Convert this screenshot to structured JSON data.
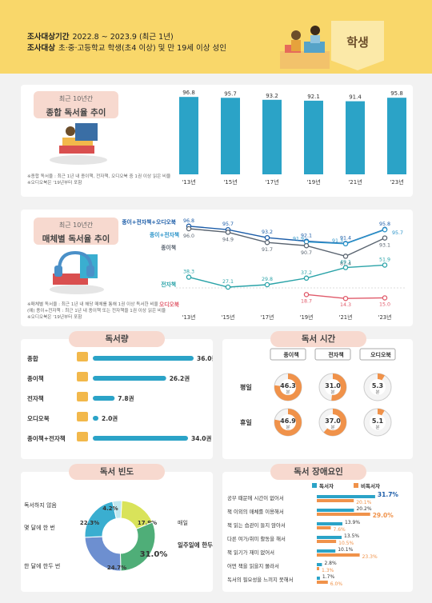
{
  "header": {
    "period_label": "조사대상기간",
    "period_value": "2022.8 ~ 2023.9 (최근 1년)",
    "target_label": "조사대상",
    "target_value": "초·중·고등학교 학생(초4 이상) 및 만 19세 이상 성인",
    "tag": "학생",
    "accent_color": "#f9d76a"
  },
  "overall": {
    "pill_small": "최근 10년간",
    "pill_title": "종합 독서율 추이",
    "notes": [
      "※종합 독서율 : 최근 1년 내 종이책, 전자책, 오디오북 중 1권 이상 읽은 비율",
      "※오디오북은 '19년부터 포함"
    ],
    "bar_color": "#2ba3c7"
  },
  "media": {
    "pill_small": "최근 10년간",
    "pill_title": "매체별 독서율 추이",
    "notes": [
      "※매체별 독서율 : 최근 1년 내 해당 매체를 통해 1권 이상 독서한 비율",
      "(예) 종이+전자책 : 최근 1년 내 종이책 또는 전자책을 1권 이상 읽은 비율",
      "※오디오북은 '19년부터 포함"
    ]
  },
  "reading_amount": {
    "title": "독서량",
    "unit": "권"
  },
  "reading_time": {
    "title": "독서 시간",
    "columns": [
      "종이책",
      "전자책",
      "오디오북"
    ],
    "rows": [
      {
        "label": "평일",
        "values": [
          "46.3",
          "31.0",
          "5.3"
        ]
      },
      {
        "label": "휴일",
        "values": [
          "46.9",
          "37.0",
          "5.1"
        ]
      }
    ],
    "unit": "분"
  },
  "frequency": {
    "title": "독서 빈도"
  },
  "obstacles": {
    "title": "독서 장애요인",
    "legend": [
      "독서자",
      "비독서자"
    ]
  },
  "chart_data": [
    {
      "type": "bar",
      "title": "종합 독서율 추이",
      "categories": [
        "'13년",
        "'15년",
        "'17년",
        "'19년",
        "'21년",
        "'23년"
      ],
      "values": [
        96.8,
        95.7,
        93.2,
        92.1,
        91.4,
        95.8
      ],
      "labels": [
        "96.8",
        "95.7",
        "93.2",
        "92.1",
        "91.4",
        "95.8"
      ],
      "ylim": [
        0,
        100
      ]
    },
    {
      "type": "line",
      "title": "매체별 독서율 추이",
      "categories": [
        "'13년",
        "'15년",
        "'17년",
        "'19년",
        "'21년",
        "'23년"
      ],
      "series": [
        {
          "name": "종이+전자책+오디오북",
          "color": "#1b5ca8",
          "values": [
            96.8,
            95.7,
            93.2,
            92.1,
            91.4,
            95.8
          ],
          "labels": [
            "96.8",
            "95.7",
            "93.2",
            "92.1",
            "91.4",
            "95.8"
          ]
        },
        {
          "name": "종이+전자책",
          "color": "#2a93c9",
          "values": [
            null,
            null,
            null,
            91.9,
            91.3,
            95.7
          ],
          "labels": [
            null,
            null,
            null,
            "91.9",
            "91.3",
            "95.7"
          ]
        },
        {
          "name": "종이책",
          "color": "#5a6470",
          "values": [
            96.0,
            94.9,
            91.7,
            90.7,
            87.4,
            93.1
          ],
          "labels": [
            "96.0",
            "94.9",
            "91.7",
            "90.7",
            "87.4",
            "93.1"
          ]
        },
        {
          "name": "전자책",
          "color": "#2aa3a8",
          "values": [
            38.3,
            27.1,
            29.8,
            37.2,
            49.1,
            51.9
          ],
          "labels": [
            "38.3",
            "27.1",
            "29.8",
            "37.2",
            "49.1",
            "51.9"
          ]
        },
        {
          "name": "오디오북",
          "color": "#e05a6a",
          "values": [
            null,
            null,
            null,
            18.7,
            14.3,
            15.0
          ],
          "labels": [
            null,
            null,
            null,
            "18.7",
            "14.3",
            "15.0"
          ]
        }
      ]
    },
    {
      "type": "bar",
      "title": "독서량",
      "categories": [
        "종합",
        "종이책",
        "전자책",
        "오디오북",
        "종이책+전자책"
      ],
      "values": [
        36.0,
        26.2,
        7.8,
        2.0,
        34.0
      ],
      "labels": [
        "36.0",
        "26.2",
        "7.8",
        "2.0",
        "34.0"
      ],
      "orientation": "horizontal"
    },
    {
      "type": "pie",
      "title": "독서 빈도",
      "categories": [
        "매일",
        "일주일에 한두 번",
        "한 달에 한두 번",
        "몇 달에 한 번",
        "독서하지 않음"
      ],
      "values": [
        17.9,
        31.0,
        24.7,
        22.3,
        4.2
      ],
      "labels": [
        "17.9%",
        "31.0%",
        "24.7%",
        "22.3%",
        "4.2%"
      ],
      "colors": [
        "#d9e35a",
        "#4fae78",
        "#6d8fd0",
        "#3aaed0",
        "#bfe8f0"
      ]
    },
    {
      "type": "bar",
      "title": "독서 장애요인",
      "orientation": "horizontal",
      "categories": [
        "공부 때문에 시간이 없어서",
        "책 이외의 매체를 이용해서",
        "책 읽는 습관이 들지 않아서",
        "다른 여가/취미 활동을 해서",
        "책 읽기가 재미 없어서",
        "어떤 책을 읽을지 몰라서",
        "독서의 필요성을 느끼지 못해서"
      ],
      "series": [
        {
          "name": "독서자",
          "color": "#2ba3c7",
          "values": [
            31.7,
            20.2,
            13.9,
            13.5,
            10.1,
            2.8,
            1.7
          ],
          "labels": [
            "31.7%",
            "20.2%",
            "13.9%",
            "13.5%",
            "10.1%",
            "2.8%",
            "1.7%"
          ]
        },
        {
          "name": "비독서자",
          "color": "#f0924a",
          "values": [
            20.1,
            29.0,
            7.6,
            10.5,
            23.3,
            1.3,
            6.0
          ],
          "labels": [
            "20.1%",
            "29.0%",
            "7.6%",
            "10.5%",
            "23.3%",
            "1.3%",
            "6.0%"
          ]
        }
      ]
    }
  ]
}
